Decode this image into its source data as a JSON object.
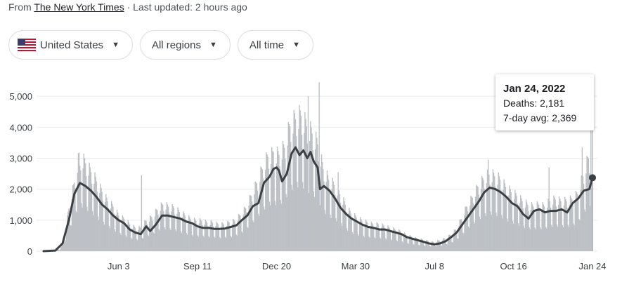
{
  "source": {
    "prefix": "From",
    "publisher": "The New York Times",
    "separator": "·",
    "updated": "Last updated: 2 hours ago"
  },
  "filters": {
    "country": "United States",
    "region": "All regions",
    "period": "All time"
  },
  "icons": {
    "flag": "us-flag-icon",
    "dropdown": "caret-down-icon"
  },
  "colors": {
    "bars": "#bdc1c6",
    "avg_line": "#3c4043",
    "grid": "#e8eaed"
  },
  "tooltip": {
    "date": "Jan 24, 2022",
    "deaths": "Deaths: 2,181",
    "avg": "7-day avg: 2,369"
  },
  "chart_data": {
    "type": "bar",
    "title": "",
    "xlabel": "",
    "ylabel": "",
    "ylim": [
      0,
      5500
    ],
    "y_ticks": [
      0,
      1000,
      2000,
      3000,
      4000,
      5000
    ],
    "y_tick_labels": [
      "0",
      "1,000",
      "2,000",
      "3,000",
      "4,000",
      "5,000"
    ],
    "x_tick_labels": [
      "Jun 3",
      "Sep 11",
      "Dec 20",
      "Mar 30",
      "Jul 8",
      "Oct 16",
      "Jan 24"
    ],
    "x_tick_dates": [
      "2020-06-03",
      "2020-09-11",
      "2020-12-20",
      "2021-03-30",
      "2021-07-08",
      "2021-10-16",
      "2022-01-24"
    ],
    "x_range": [
      "2020-02-29",
      "2022-01-24"
    ],
    "grid": true,
    "series": [
      {
        "name": "Deaths",
        "style": "daily bars",
        "points": [
          [
            "2020-02-29",
            0
          ],
          [
            "2020-03-10",
            10
          ],
          [
            "2020-03-20",
            60
          ],
          [
            "2020-03-25",
            250
          ],
          [
            "2020-04-01",
            1200
          ],
          [
            "2020-04-07",
            1800
          ],
          [
            "2020-04-14",
            2650
          ],
          [
            "2020-04-21",
            2500
          ],
          [
            "2020-04-28",
            2250
          ],
          [
            "2020-05-05",
            2000
          ],
          [
            "2020-05-12",
            1700
          ],
          [
            "2020-05-20",
            1400
          ],
          [
            "2020-05-27",
            1250
          ],
          [
            "2020-06-03",
            1000
          ],
          [
            "2020-06-10",
            900
          ],
          [
            "2020-06-17",
            750
          ],
          [
            "2020-06-24",
            650
          ],
          [
            "2020-07-01",
            650
          ],
          [
            "2020-07-08",
            850
          ],
          [
            "2020-07-15",
            950
          ],
          [
            "2020-07-22",
            1150
          ],
          [
            "2020-07-29",
            1300
          ],
          [
            "2020-08-05",
            1250
          ],
          [
            "2020-08-12",
            1200
          ],
          [
            "2020-08-19",
            1100
          ],
          [
            "2020-08-26",
            1000
          ],
          [
            "2020-09-02",
            900
          ],
          [
            "2020-09-09",
            850
          ],
          [
            "2020-09-16",
            850
          ],
          [
            "2020-09-23",
            800
          ],
          [
            "2020-09-30",
            800
          ],
          [
            "2020-10-07",
            750
          ],
          [
            "2020-10-14",
            750
          ],
          [
            "2020-10-21",
            800
          ],
          [
            "2020-10-28",
            850
          ],
          [
            "2020-11-04",
            1000
          ],
          [
            "2020-11-11",
            1200
          ],
          [
            "2020-11-18",
            1550
          ],
          [
            "2020-11-25",
            1900
          ],
          [
            "2020-12-02",
            2300
          ],
          [
            "2020-12-09",
            2650
          ],
          [
            "2020-12-16",
            2700
          ],
          [
            "2020-12-23",
            2700
          ],
          [
            "2020-12-30",
            2900
          ],
          [
            "2021-01-06",
            3500
          ],
          [
            "2021-01-13",
            3700
          ],
          [
            "2021-01-20",
            3800
          ],
          [
            "2021-01-27",
            3500
          ],
          [
            "2021-02-03",
            3300
          ],
          [
            "2021-02-10",
            3000
          ],
          [
            "2021-02-17",
            2300
          ],
          [
            "2021-02-24",
            2000
          ],
          [
            "2021-03-03",
            1850
          ],
          [
            "2021-03-10",
            1600
          ],
          [
            "2021-03-17",
            1300
          ],
          [
            "2021-03-24",
            1050
          ],
          [
            "2021-03-31",
            950
          ],
          [
            "2021-04-07",
            850
          ],
          [
            "2021-04-14",
            800
          ],
          [
            "2021-04-21",
            750
          ],
          [
            "2021-04-28",
            750
          ],
          [
            "2021-05-05",
            700
          ],
          [
            "2021-05-12",
            650
          ],
          [
            "2021-05-19",
            600
          ],
          [
            "2021-05-26",
            550
          ],
          [
            "2021-06-02",
            450
          ],
          [
            "2021-06-09",
            400
          ],
          [
            "2021-06-16",
            350
          ],
          [
            "2021-06-23",
            320
          ],
          [
            "2021-06-30",
            280
          ],
          [
            "2021-07-07",
            250
          ],
          [
            "2021-07-14",
            300
          ],
          [
            "2021-07-21",
            350
          ],
          [
            "2021-07-28",
            450
          ],
          [
            "2021-08-04",
            600
          ],
          [
            "2021-08-11",
            900
          ],
          [
            "2021-08-18",
            1250
          ],
          [
            "2021-08-25",
            1500
          ],
          [
            "2021-09-01",
            1800
          ],
          [
            "2021-09-08",
            2000
          ],
          [
            "2021-09-15",
            2150
          ],
          [
            "2021-09-22",
            2100
          ],
          [
            "2021-09-29",
            2000
          ],
          [
            "2021-10-06",
            1800
          ],
          [
            "2021-10-13",
            1650
          ],
          [
            "2021-10-20",
            1550
          ],
          [
            "2021-10-27",
            1400
          ],
          [
            "2021-11-03",
            1300
          ],
          [
            "2021-11-10",
            1250
          ],
          [
            "2021-11-17",
            1300
          ],
          [
            "2021-11-24",
            1250
          ],
          [
            "2021-12-01",
            1400
          ],
          [
            "2021-12-08",
            1450
          ],
          [
            "2021-12-15",
            1400
          ],
          [
            "2021-12-22",
            1400
          ],
          [
            "2021-12-29",
            1450
          ],
          [
            "2022-01-05",
            1600
          ],
          [
            "2022-01-12",
            2100
          ],
          [
            "2022-01-19",
            2600
          ],
          [
            "2022-01-24",
            2181
          ]
        ],
        "notable_spikes": [
          [
            "2020-04-15",
            2750
          ],
          [
            "2020-07-02",
            2450
          ],
          [
            "2020-12-16",
            3200
          ],
          [
            "2021-01-12",
            4450
          ],
          [
            "2021-01-29",
            5000
          ],
          [
            "2021-02-12",
            5450
          ],
          [
            "2021-03-08",
            2550
          ],
          [
            "2021-09-14",
            2950
          ],
          [
            "2021-11-30",
            2700
          ],
          [
            "2022-01-11",
            3350
          ],
          [
            "2022-01-22",
            4500
          ]
        ]
      },
      {
        "name": "7-day avg",
        "style": "line",
        "points": [
          [
            "2020-02-29",
            0
          ],
          [
            "2020-03-15",
            20
          ],
          [
            "2020-03-24",
            250
          ],
          [
            "2020-04-01",
            1000
          ],
          [
            "2020-04-08",
            1850
          ],
          [
            "2020-04-15",
            2200
          ],
          [
            "2020-04-22",
            2100
          ],
          [
            "2020-04-29",
            1950
          ],
          [
            "2020-05-06",
            1750
          ],
          [
            "2020-05-13",
            1500
          ],
          [
            "2020-05-20",
            1350
          ],
          [
            "2020-05-27",
            1150
          ],
          [
            "2020-06-03",
            1000
          ],
          [
            "2020-06-10",
            900
          ],
          [
            "2020-06-17",
            700
          ],
          [
            "2020-06-24",
            600
          ],
          [
            "2020-07-01",
            550
          ],
          [
            "2020-07-08",
            800
          ],
          [
            "2020-07-13",
            650
          ],
          [
            "2020-07-20",
            850
          ],
          [
            "2020-07-28",
            1150
          ],
          [
            "2020-08-04",
            1150
          ],
          [
            "2020-08-12",
            1100
          ],
          [
            "2020-08-20",
            1050
          ],
          [
            "2020-08-28",
            950
          ],
          [
            "2020-09-04",
            900
          ],
          [
            "2020-09-11",
            800
          ],
          [
            "2020-09-18",
            750
          ],
          [
            "2020-09-25",
            750
          ],
          [
            "2020-10-02",
            720
          ],
          [
            "2020-10-09",
            720
          ],
          [
            "2020-10-16",
            730
          ],
          [
            "2020-10-23",
            780
          ],
          [
            "2020-10-30",
            830
          ],
          [
            "2020-11-06",
            1000
          ],
          [
            "2020-11-13",
            1150
          ],
          [
            "2020-11-20",
            1450
          ],
          [
            "2020-11-27",
            1550
          ],
          [
            "2020-12-04",
            2200
          ],
          [
            "2020-12-11",
            2400
          ],
          [
            "2020-12-16",
            2650
          ],
          [
            "2020-12-20",
            2700
          ],
          [
            "2020-12-23",
            2600
          ],
          [
            "2020-12-27",
            2250
          ],
          [
            "2021-01-02",
            2500
          ],
          [
            "2021-01-08",
            3150
          ],
          [
            "2021-01-13",
            3350
          ],
          [
            "2021-01-18",
            3100
          ],
          [
            "2021-01-23",
            3250
          ],
          [
            "2021-01-28",
            3000
          ],
          [
            "2021-02-01",
            3200
          ],
          [
            "2021-02-05",
            2900
          ],
          [
            "2021-02-10",
            2700
          ],
          [
            "2021-02-13",
            2000
          ],
          [
            "2021-02-18",
            2100
          ],
          [
            "2021-02-25",
            1950
          ],
          [
            "2021-03-04",
            1700
          ],
          [
            "2021-03-11",
            1400
          ],
          [
            "2021-03-18",
            1200
          ],
          [
            "2021-03-25",
            1050
          ],
          [
            "2021-04-01",
            950
          ],
          [
            "2021-04-08",
            850
          ],
          [
            "2021-04-15",
            780
          ],
          [
            "2021-04-22",
            750
          ],
          [
            "2021-04-29",
            700
          ],
          [
            "2021-05-06",
            700
          ],
          [
            "2021-05-13",
            650
          ],
          [
            "2021-05-20",
            600
          ],
          [
            "2021-05-27",
            550
          ],
          [
            "2021-06-03",
            450
          ],
          [
            "2021-06-10",
            400
          ],
          [
            "2021-06-17",
            350
          ],
          [
            "2021-06-24",
            300
          ],
          [
            "2021-07-01",
            250
          ],
          [
            "2021-07-08",
            220
          ],
          [
            "2021-07-15",
            250
          ],
          [
            "2021-07-22",
            320
          ],
          [
            "2021-07-29",
            450
          ],
          [
            "2021-08-05",
            600
          ],
          [
            "2021-08-12",
            850
          ],
          [
            "2021-08-19",
            1100
          ],
          [
            "2021-08-26",
            1350
          ],
          [
            "2021-09-02",
            1600
          ],
          [
            "2021-09-09",
            1900
          ],
          [
            "2021-09-16",
            2050
          ],
          [
            "2021-09-23",
            2000
          ],
          [
            "2021-09-30",
            1900
          ],
          [
            "2021-10-07",
            1750
          ],
          [
            "2021-10-14",
            1550
          ],
          [
            "2021-10-21",
            1450
          ],
          [
            "2021-10-28",
            1200
          ],
          [
            "2021-11-04",
            1050
          ],
          [
            "2021-11-11",
            1300
          ],
          [
            "2021-11-18",
            1350
          ],
          [
            "2021-11-25",
            1250
          ],
          [
            "2021-12-02",
            1300
          ],
          [
            "2021-12-09",
            1300
          ],
          [
            "2021-12-16",
            1350
          ],
          [
            "2021-12-23",
            1250
          ],
          [
            "2021-12-30",
            1550
          ],
          [
            "2022-01-06",
            1700
          ],
          [
            "2022-01-13",
            1950
          ],
          [
            "2022-01-20",
            2000
          ],
          [
            "2022-01-24",
            2369
          ]
        ]
      }
    ]
  }
}
